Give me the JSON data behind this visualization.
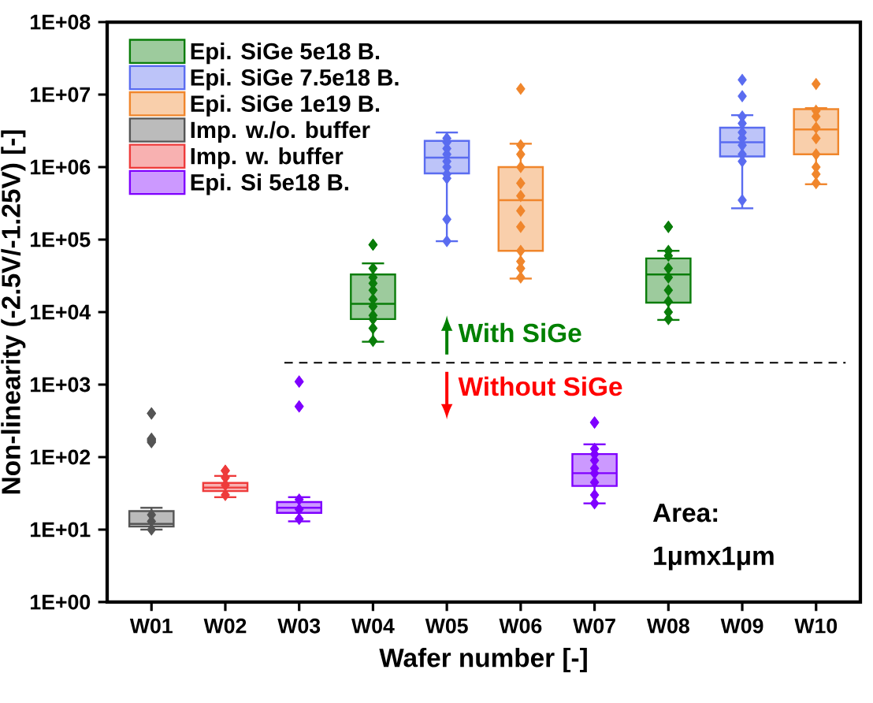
{
  "chart_data": {
    "type": "box",
    "xlabel": "Wafer number [-]",
    "ylabel": "Non-linearity (-2.5V/-1.25V) [-]",
    "categories": [
      "W01",
      "W02",
      "W03",
      "W04",
      "W05",
      "W06",
      "W07",
      "W08",
      "W09",
      "W10"
    ],
    "log": true,
    "ylim": [
      1,
      100000000
    ],
    "yticks": [
      {
        "value": 1,
        "label": "1E+00"
      },
      {
        "value": 10,
        "label": "1E+01"
      },
      {
        "value": 100,
        "label": "1E+02"
      },
      {
        "value": 1000,
        "label": "1E+03"
      },
      {
        "value": 10000,
        "label": "1E+04"
      },
      {
        "value": 100000,
        "label": "1E+05"
      },
      {
        "value": 1000000,
        "label": "1E+06"
      },
      {
        "value": 10000000,
        "label": "1E+07"
      },
      {
        "value": 100000000,
        "label": "1E+08"
      }
    ],
    "legend": "top left",
    "marker": "diamond",
    "ref_lines": [
      {
        "axis": "y",
        "value": 2000,
        "line_style": "dashed",
        "color": "#000000"
      }
    ],
    "annotations": [
      "With SiGe",
      "Without SiGe",
      "Area:",
      "1μmx1μm"
    ],
    "series": [
      {
        "name": "Epi. SiGe 5e18 B.",
        "color": "#0a7d0a",
        "boxes": [
          null,
          null,
          null,
          {
            "low": 3900,
            "q1": 8000,
            "median": 13000,
            "q3": 33000,
            "high": 47000,
            "outliers": [
              85000,
              85000
            ]
          },
          null,
          null,
          null,
          {
            "low": 7800,
            "q1": 13500,
            "median": 33000,
            "q3": 55000,
            "high": 70000,
            "outliers": [
              150000,
              150000
            ]
          },
          null,
          null
        ]
      },
      {
        "name": "Epi. SiGe 7.5e18 B.",
        "color": "#5a6cf0",
        "boxes": [
          null,
          null,
          null,
          null,
          {
            "low": 95000,
            "q1": 820000,
            "median": 1350000,
            "q3": 2300000,
            "high": 3000000
          },
          null,
          null,
          null,
          {
            "low": 270000,
            "q1": 1400000,
            "median": 2200000,
            "q3": 3500000,
            "high": 5200000,
            "outliers": [
              9500000,
              16000000
            ]
          },
          null
        ]
      },
      {
        "name": "Epi. SiGe 1e19 B.",
        "color": "#f0862c",
        "boxes": [
          null,
          null,
          null,
          null,
          null,
          {
            "low": 29000,
            "q1": 70000,
            "median": 350000,
            "q3": 1000000,
            "high": 2100000,
            "outliers": [
              12000000
            ]
          },
          null,
          null,
          null,
          {
            "low": 580000,
            "q1": 1500000,
            "median": 3300000,
            "q3": 6300000,
            "high": 6500000,
            "outliers": [
              14000000
            ]
          }
        ]
      },
      {
        "name": "Imp. w./o. buffer",
        "color": "#555555",
        "boxes": [
          {
            "low": 10,
            "q1": 11,
            "median": 12,
            "q3": 18,
            "high": 20,
            "outliers": [
              160,
              165,
              170,
              175,
              180,
              400,
              400
            ]
          },
          null,
          null,
          null,
          null,
          null,
          null,
          null,
          null,
          null
        ]
      },
      {
        "name": "Imp. w. buffer",
        "color": "#ee3b3b",
        "boxes": [
          null,
          {
            "low": 28,
            "q1": 34,
            "median": 38,
            "q3": 44,
            "high": 55,
            "outliers": [
              65,
              65
            ]
          },
          null,
          null,
          null,
          null,
          null,
          null,
          null,
          null
        ]
      },
      {
        "name": "Epi. Si 5e18 B.",
        "color": "#7f00ff",
        "boxes": [
          null,
          null,
          {
            "low": 13,
            "q1": 17,
            "median": 20,
            "q3": 24,
            "high": 28,
            "outliers": [
              500,
              500,
              1100,
              1100
            ]
          },
          null,
          null,
          null,
          {
            "low": 23,
            "q1": 40,
            "median": 60,
            "q3": 110,
            "high": 150,
            "outliers": [
              300,
              300
            ]
          },
          null,
          null,
          null
        ]
      },
      {
        "type": "scatter",
        "color": "#0a7d0a",
        "x": [
          "W04",
          "W04",
          "W04",
          "W04",
          "W04",
          "W04",
          "W04",
          "W04",
          "W04",
          "W04",
          "W08",
          "W08",
          "W08",
          "W08",
          "W08",
          "W08",
          "W08",
          "W08"
        ],
        "values": [
          4000,
          6000,
          8000,
          9000,
          12000,
          15000,
          20000,
          25000,
          30000,
          40000,
          8000,
          10000,
          14000,
          20000,
          30000,
          40000,
          60000,
          70000
        ]
      },
      {
        "type": "scatter",
        "color": "#5a6cf0",
        "x": [
          "W05",
          "W05",
          "W05",
          "W05",
          "W05",
          "W05",
          "W05",
          "W05",
          "W05",
          "W05",
          "W09",
          "W09",
          "W09",
          "W09",
          "W09",
          "W09",
          "W09",
          "W09"
        ],
        "values": [
          95000,
          190000,
          700000,
          800000,
          1000000,
          1200000,
          1500000,
          1800000,
          2200000,
          2500000,
          350000,
          1200000,
          1500000,
          2000000,
          2500000,
          3000000,
          4000000,
          5000000
        ]
      },
      {
        "type": "scatter",
        "color": "#f0862c",
        "x": [
          "W06",
          "W06",
          "W06",
          "W06",
          "W06",
          "W06",
          "W06",
          "W06",
          "W06",
          "W06",
          "W06",
          "W10",
          "W10",
          "W10",
          "W10",
          "W10",
          "W10",
          "W10",
          "W10"
        ],
        "values": [
          30000,
          40000,
          50000,
          70000,
          150000,
          250000,
          400000,
          600000,
          1000000,
          1500000,
          2000000,
          600000,
          800000,
          1000000,
          1500000,
          2500000,
          3500000,
          5000000,
          6000000
        ]
      },
      {
        "type": "scatter",
        "color": "#555555",
        "x": [
          "W01",
          "W01",
          "W01"
        ],
        "values": [
          10,
          13,
          16
        ]
      },
      {
        "type": "scatter",
        "color": "#ee3b3b",
        "x": [
          "W02",
          "W02",
          "W02"
        ],
        "values": [
          30,
          41,
          52
        ]
      },
      {
        "type": "scatter",
        "color": "#7f00ff",
        "x": [
          "W03",
          "W03",
          "W03",
          "W07",
          "W07",
          "W07",
          "W07",
          "W07",
          "W07",
          "W07",
          "W07"
        ],
        "values": [
          14,
          19,
          26,
          23,
          30,
          45,
          60,
          70,
          90,
          110,
          130
        ]
      }
    ]
  }
}
